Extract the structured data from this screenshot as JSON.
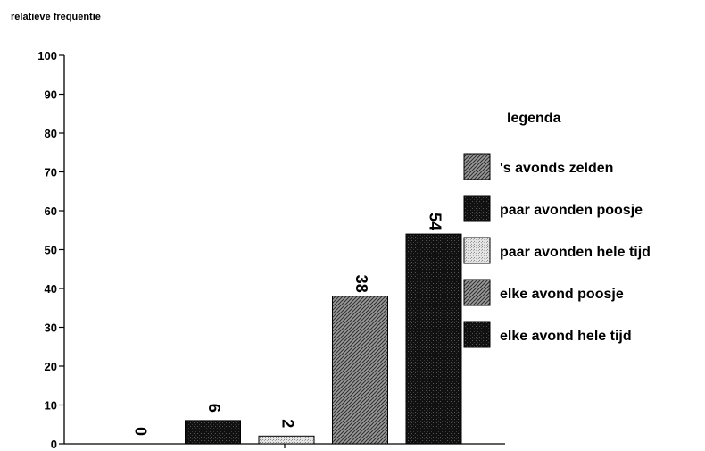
{
  "chart_data": {
    "type": "bar",
    "ylabel": "relatieve frequentie",
    "ylim": [
      0,
      100
    ],
    "yticks": [
      "0",
      "10",
      "20",
      "30",
      "40",
      "50",
      "60",
      "70",
      "80",
      "90",
      "100"
    ],
    "legend_title": "legenda",
    "legend_position": "right",
    "grid": false,
    "series": [
      {
        "name": "'s avonds zelden",
        "value": 0,
        "label": "0",
        "color": "#6a6a6a",
        "pattern": "diagonal-hatch"
      },
      {
        "name": "paar avonden poosje",
        "value": 6,
        "label": "6",
        "color": "#0a0a0a",
        "pattern": "dark-stipple"
      },
      {
        "name": "paar avonden hele tijd",
        "value": 2,
        "label": "2",
        "color": "#cccccc",
        "pattern": "light-dots"
      },
      {
        "name": "elke avond poosje",
        "value": 38,
        "label": "38",
        "color": "#7a7a7a",
        "pattern": "diagonal-hatch"
      },
      {
        "name": "elke avond hele tijd",
        "value": 54,
        "label": "54",
        "color": "#151515",
        "pattern": "dark-stipple"
      }
    ]
  }
}
